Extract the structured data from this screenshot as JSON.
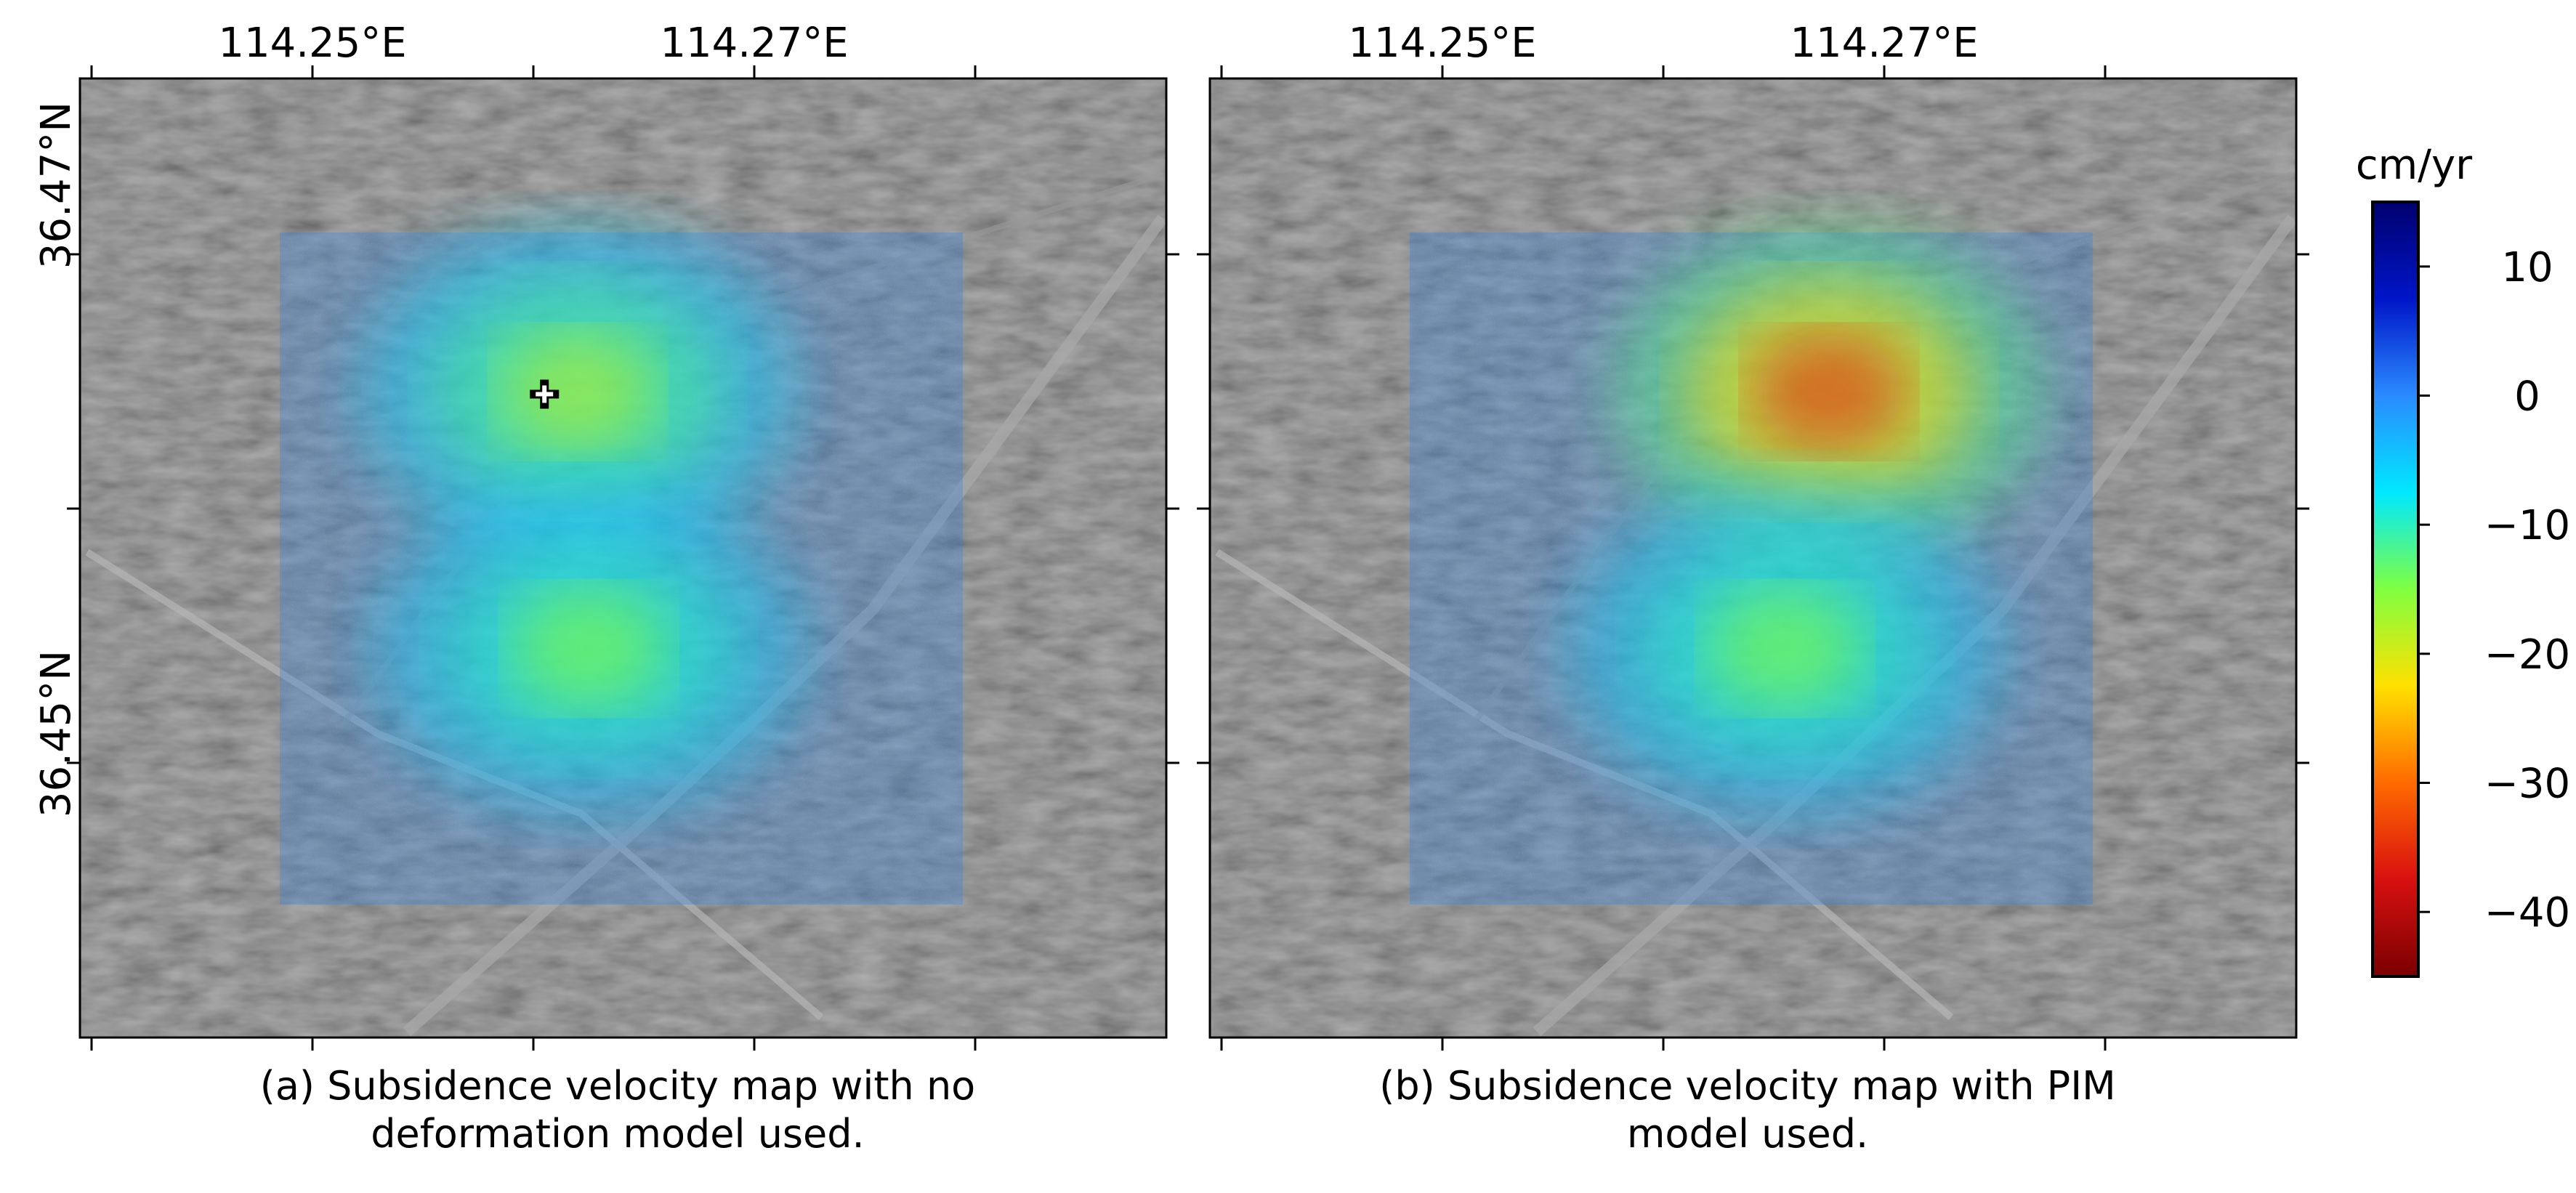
{
  "colorbar": {
    "unit": "cm/yr",
    "ticks": [
      10,
      0,
      -10,
      -20,
      -30,
      -40
    ],
    "tick_labels": [
      "10",
      "0",
      "−10",
      "−20",
      "−30",
      "−40"
    ],
    "range": [
      -45,
      15
    ],
    "colors": [
      "#7a0000",
      "#d81010",
      "#ff6a00",
      "#ffe000",
      "#80ff40",
      "#00e8ff",
      "#2a8bff",
      "#0015c8",
      "#00006e"
    ]
  },
  "panels": [
    {
      "x_tick_labels": [
        "114.25°E",
        "114.27°E"
      ],
      "y_tick_labels": [
        "36.47°N",
        "36.45°N"
      ],
      "caption_line1": "(a)  Subsidence velocity map with no",
      "caption_line2": "deformation model used."
    },
    {
      "x_tick_labels": [
        "114.25°E",
        "114.27°E"
      ],
      "caption_line1": "(b)  Subsidence velocity map with PIM",
      "caption_line2": "model used."
    }
  ],
  "chart_data": [
    {
      "type": "heatmap",
      "title": "",
      "xlabel": "",
      "ylabel": "",
      "x_ticks": [
        114.25,
        114.27
      ],
      "y_ticks": [
        36.47,
        36.45
      ],
      "colorbar_label": "cm/yr",
      "value_range": [
        -45,
        15
      ],
      "background_velocity": 0,
      "anomalies": [
        {
          "lon": 114.262,
          "lat": 36.4646,
          "peak_velocity": -18
        },
        {
          "lon": 114.2625,
          "lat": 36.4545,
          "peak_velocity": -15
        }
      ],
      "marker": {
        "lon": 114.2605,
        "lat": 36.4645,
        "symbol": "+"
      }
    },
    {
      "type": "heatmap",
      "title": "",
      "xlabel": "",
      "ylabel": "",
      "x_ticks": [
        114.25,
        114.27
      ],
      "colorbar_label": "cm/yr",
      "value_range": [
        -45,
        15
      ],
      "background_velocity": 0,
      "anomalies": [
        {
          "lon": 114.2675,
          "lat": 36.4646,
          "peak_velocity": -35
        },
        {
          "lon": 114.2655,
          "lat": 36.4545,
          "peak_velocity": -15
        }
      ]
    }
  ]
}
